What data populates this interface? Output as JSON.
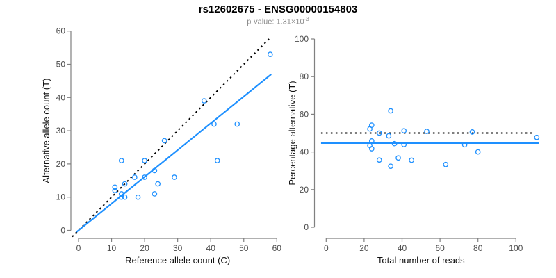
{
  "figure": {
    "title": "rs12602675 - ENSG00000154803",
    "subtitle_prefix": "p-value: 1.31×10",
    "subtitle_exponent": "-3"
  },
  "colors": {
    "accent_blue": "#1E90FF",
    "identity_black": "#000000",
    "axis_gray": "#808080",
    "tick_text_gray": "#4d4d4d",
    "subtitle_gray": "#8c8c8c"
  },
  "chart_data": [
    {
      "type": "scatter",
      "name": "allele-counts-scatter",
      "xlabel": "Reference allele count (C)",
      "ylabel": "Alternative allele count (T)",
      "xlim": [
        0,
        60
      ],
      "ylim": [
        0,
        60
      ],
      "xticks": [
        0,
        10,
        20,
        30,
        40,
        50,
        60
      ],
      "yticks": [
        0,
        10,
        20,
        30,
        40,
        50,
        60
      ],
      "grid": false,
      "legend": null,
      "points": [
        [
          58,
          53
        ],
        [
          38,
          39
        ],
        [
          48,
          32
        ],
        [
          41,
          32
        ],
        [
          26,
          27
        ],
        [
          42,
          21
        ],
        [
          20,
          21
        ],
        [
          13,
          21
        ],
        [
          23,
          18
        ],
        [
          17,
          16
        ],
        [
          20,
          16
        ],
        [
          29,
          16
        ],
        [
          24,
          14
        ],
        [
          14,
          14
        ],
        [
          11,
          13
        ],
        [
          11,
          12
        ],
        [
          13,
          11
        ],
        [
          23,
          11
        ],
        [
          13,
          10
        ],
        [
          14,
          10
        ],
        [
          18,
          10
        ]
      ],
      "lines": [
        {
          "name": "identity-line",
          "style": "dotted",
          "color": "#000000",
          "slope": 1,
          "intercept": 0
        },
        {
          "name": "fit-line",
          "style": "solid",
          "color": "#1E90FF",
          "slope": 0.806,
          "intercept": 0
        }
      ]
    },
    {
      "type": "scatter",
      "name": "percentage-vs-coverage-scatter",
      "xlabel": "Total number of reads",
      "ylabel": "Percentage alternative (T)",
      "xlim": [
        0,
        112
      ],
      "ylim": [
        0,
        100
      ],
      "xticks": [
        0,
        20,
        40,
        60,
        80,
        100
      ],
      "yticks": [
        0,
        20,
        40,
        60,
        80,
        100
      ],
      "grid": false,
      "legend": null,
      "points": [
        [
          111,
          47.7
        ],
        [
          77,
          50.6
        ],
        [
          80,
          40
        ],
        [
          73,
          43.8
        ],
        [
          53,
          50.9
        ],
        [
          63,
          33.3
        ],
        [
          41,
          51.2
        ],
        [
          34,
          61.8
        ],
        [
          41,
          43.9
        ],
        [
          33,
          48.5
        ],
        [
          36,
          44.4
        ],
        [
          45,
          35.6
        ],
        [
          38,
          36.8
        ],
        [
          28,
          50
        ],
        [
          24,
          54.2
        ],
        [
          23,
          52.2
        ],
        [
          24,
          45.8
        ],
        [
          34,
          32.4
        ],
        [
          23,
          43.5
        ],
        [
          24,
          41.7
        ],
        [
          28,
          35.7
        ]
      ],
      "lines": [
        {
          "name": "null-50pct-line",
          "style": "dotted",
          "color": "#000000",
          "hline": 50
        },
        {
          "name": "fit-mean-line",
          "style": "solid",
          "color": "#1E90FF",
          "hline": 44.7
        }
      ]
    }
  ]
}
